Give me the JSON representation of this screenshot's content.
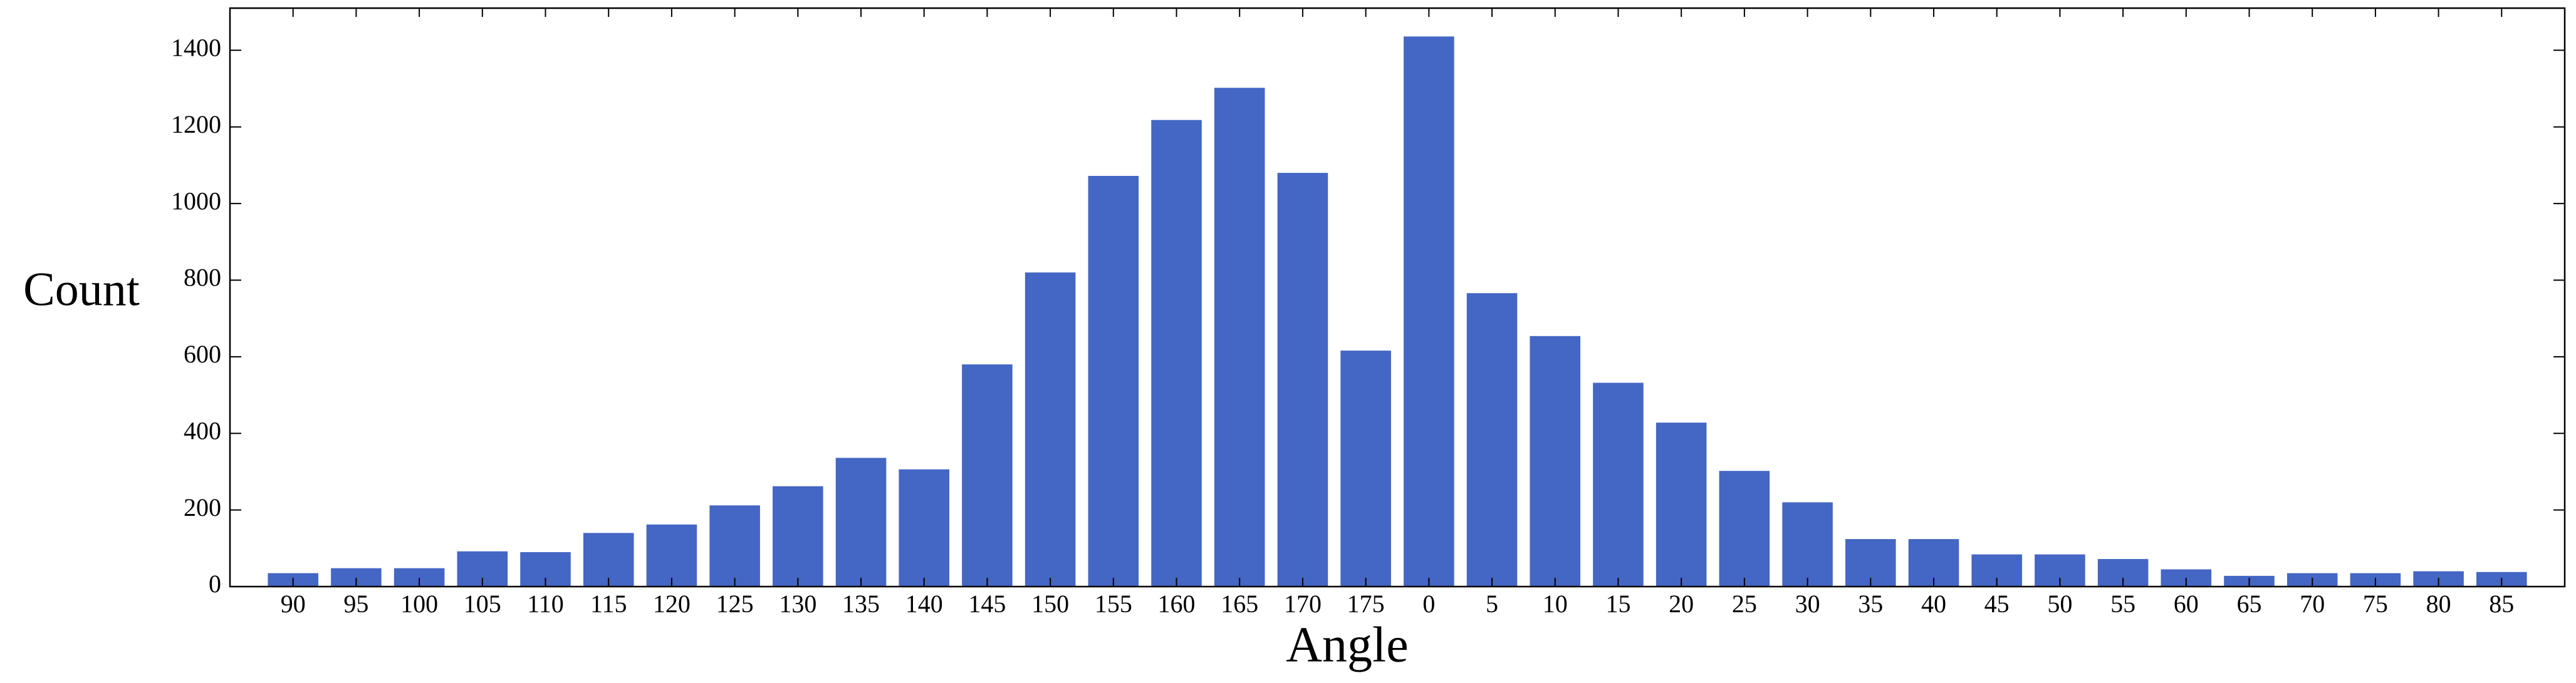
{
  "chart_data": {
    "type": "bar",
    "xlabel": "Angle",
    "ylabel": "Count",
    "categories": [
      "90",
      "95",
      "100",
      "105",
      "110",
      "115",
      "120",
      "125",
      "130",
      "135",
      "140",
      "145",
      "150",
      "155",
      "160",
      "165",
      "170",
      "175",
      "0",
      "5",
      "10",
      "15",
      "20",
      "25",
      "30",
      "35",
      "40",
      "45",
      "50",
      "55",
      "60",
      "65",
      "70",
      "75",
      "80",
      "85"
    ],
    "values": [
      35,
      48,
      48,
      92,
      90,
      140,
      162,
      212,
      262,
      336,
      306,
      580,
      820,
      1072,
      1218,
      1302,
      1080,
      616,
      1436,
      766,
      654,
      532,
      428,
      302,
      220,
      124,
      124,
      84,
      84,
      72,
      45,
      28,
      35,
      35,
      40,
      38
    ],
    "color": "#4466c4",
    "ylim": [
      0,
      1510
    ],
    "yticks": [
      0,
      200,
      400,
      600,
      800,
      1000,
      1200,
      1400
    ]
  }
}
